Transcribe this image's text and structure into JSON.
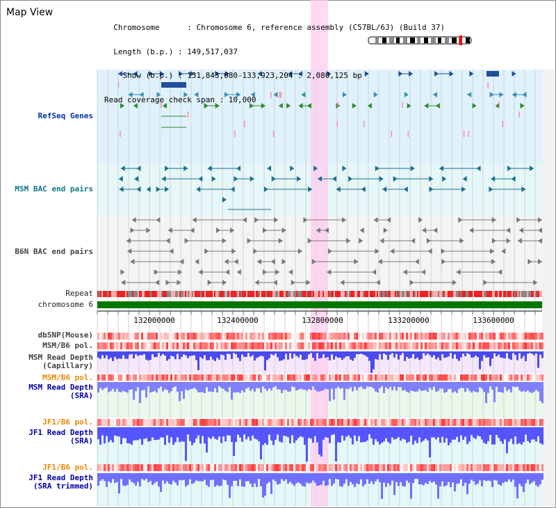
{
  "header": {
    "title": "Map View",
    "lines": [
      "  Chromosome      : Chromosome 6, reference assembly (C57BL/6J) (Build 37)",
      "  Length (b.p.) : 149,517,037",
      "    Show (b.p.) : 131,843,080-133,923,204 : 2,080,125 bp",
      "Read coverage check span : 10,000"
    ]
  },
  "tracks": {
    "refseq": "RefSeq Genes",
    "msm_bac": "MSM BAC end pairs",
    "b6n_bac": "B6N BAC end pairs",
    "repeat": "Repeat",
    "chromosome": "chromosome 6",
    "dbsnp": "dbSNP(Mouse)",
    "msm_pol": "MSM/B6 pol.",
    "msm_depth_cap": "MSM Read Depth\n(Capillary)",
    "msm_pol2": "MSM/B6 pol.",
    "msm_depth_sra": "MSM Read Depth\n(SRA)",
    "jf1_pol": "JF1/B6 pol.",
    "jf1_depth_sra": "JF1 Read Depth\n(SRA)",
    "jf1_pol2": "JF1/B6 pol.",
    "jf1_depth_trim": "JF1 Read Depth\n(SRA trimmed)"
  },
  "axis": {
    "ticks": [
      "132000000",
      "132400000",
      "132800000",
      "133200000",
      "133600000"
    ]
  },
  "colors": {
    "gene_blue": "#1f4e9a",
    "gene_teal": "#3b8fb0",
    "gene_green": "#2a8a2a",
    "bac_teal": "#1a6e8e",
    "bac_grey": "#777777",
    "chromosome": "#007700",
    "depth": "#5050ff",
    "highlight": "#ffccee"
  }
}
